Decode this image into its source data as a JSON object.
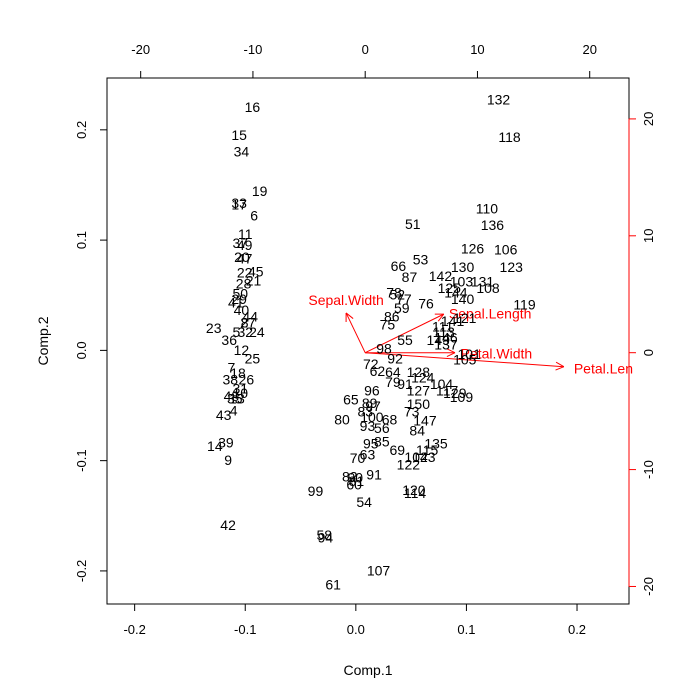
{
  "chart_data": {
    "type": "scatter",
    "xlabel": "Comp.1",
    "ylabel": "Comp.2",
    "xlim": [
      -0.225,
      0.247
    ],
    "ylim": [
      -0.23,
      0.247
    ],
    "var_xlim": [
      -23,
      23.5
    ],
    "var_ylim": [
      -21.5,
      23.5
    ],
    "x_ticks": [
      -0.2,
      -0.1,
      0.0,
      0.1,
      0.2
    ],
    "y_ticks": [
      -0.2,
      -0.1,
      0.0,
      0.1,
      0.2
    ],
    "var_x_ticks": [
      -20,
      -10,
      0,
      10,
      20
    ],
    "var_y_ticks": [
      -20,
      -10,
      0,
      10,
      20
    ],
    "x_tick_labels": [
      "-0.2",
      "-0.1",
      "0.0",
      "0.1",
      "0.2"
    ],
    "y_tick_labels": [
      "-0.2",
      "-0.1",
      "0.0",
      "0.1",
      "0.2"
    ],
    "var_x_tick_labels": [
      "-20",
      "-10",
      "0",
      "10",
      "20"
    ],
    "var_y_tick_labels": [
      "-20",
      "-10",
      "0",
      "10",
      "20"
    ],
    "points": [
      {
        "label": "16",
        "x": -0.0935,
        "y": 0.2205
      },
      {
        "label": "15",
        "x": -0.1055,
        "y": 0.1955
      },
      {
        "label": "34",
        "x": -0.1035,
        "y": 0.1805
      },
      {
        "label": "19",
        "x": -0.087,
        "y": 0.1445
      },
      {
        "label": "33",
        "x": -0.1055,
        "y": 0.1335
      },
      {
        "label": "17",
        "x": -0.1055,
        "y": 0.1325
      },
      {
        "label": "6",
        "x": -0.092,
        "y": 0.1225
      },
      {
        "label": "11",
        "x": -0.1,
        "y": 0.1055
      },
      {
        "label": "37",
        "x": -0.1045,
        "y": 0.0975
      },
      {
        "label": "49",
        "x": -0.1005,
        "y": 0.0955
      },
      {
        "label": "20",
        "x": -0.103,
        "y": 0.0845
      },
      {
        "label": "47",
        "x": -0.1005,
        "y": 0.0835
      },
      {
        "label": "22",
        "x": -0.1005,
        "y": 0.0705
      },
      {
        "label": "45",
        "x": -0.0905,
        "y": 0.0715
      },
      {
        "label": "21",
        "x": -0.0925,
        "y": 0.0635
      },
      {
        "label": "28",
        "x": -0.1015,
        "y": 0.0605
      },
      {
        "label": "50",
        "x": -0.1045,
        "y": 0.0515
      },
      {
        "label": "29",
        "x": -0.1055,
        "y": 0.0465
      },
      {
        "label": "41",
        "x": -0.1085,
        "y": 0.0435
      },
      {
        "label": "40",
        "x": -0.1035,
        "y": 0.0365
      },
      {
        "label": "44",
        "x": -0.0955,
        "y": 0.0305
      },
      {
        "label": "8",
        "x": -0.1005,
        "y": 0.0255
      },
      {
        "label": "27",
        "x": -0.0975,
        "y": 0.0255
      },
      {
        "label": "23",
        "x": -0.1285,
        "y": 0.0205
      },
      {
        "label": "5",
        "x": -0.108,
        "y": 0.0165
      },
      {
        "label": "32",
        "x": -0.1,
        "y": 0.0165
      },
      {
        "label": "24",
        "x": -0.0895,
        "y": 0.0165
      },
      {
        "label": "36",
        "x": -0.1145,
        "y": 0.0095
      },
      {
        "label": "12",
        "x": -0.1035,
        "y": 0.0005
      },
      {
        "label": "25",
        "x": -0.0935,
        "y": -0.0075
      },
      {
        "label": "7",
        "x": -0.1125,
        "y": -0.0155
      },
      {
        "label": "18",
        "x": -0.1065,
        "y": -0.0205
      },
      {
        "label": "38",
        "x": -0.1135,
        "y": -0.0265
      },
      {
        "label": "26",
        "x": -0.099,
        "y": -0.0265
      },
      {
        "label": "31",
        "x": -0.1045,
        "y": -0.0345
      },
      {
        "label": "10",
        "x": -0.1045,
        "y": -0.0385
      },
      {
        "label": "48",
        "x": -0.1125,
        "y": -0.0415
      },
      {
        "label": "35",
        "x": -0.1095,
        "y": -0.0435
      },
      {
        "label": "13",
        "x": -0.1075,
        "y": -0.0435
      },
      {
        "label": "4",
        "x": -0.1105,
        "y": -0.0545
      },
      {
        "label": "43",
        "x": -0.1195,
        "y": -0.0585
      },
      {
        "label": "39",
        "x": -0.1175,
        "y": -0.0835
      },
      {
        "label": "14",
        "x": -0.1275,
        "y": -0.0865
      },
      {
        "label": "9",
        "x": -0.1155,
        "y": -0.0995
      },
      {
        "label": "42",
        "x": -0.1155,
        "y": -0.1585
      },
      {
        "label": "132",
        "x": 0.129,
        "y": 0.2275
      },
      {
        "label": "118",
        "x": 0.139,
        "y": 0.1935
      },
      {
        "label": "110",
        "x": 0.1185,
        "y": 0.1285
      },
      {
        "label": "136",
        "x": 0.1235,
        "y": 0.1135
      },
      {
        "label": "51",
        "x": 0.0515,
        "y": 0.1145
      },
      {
        "label": "126",
        "x": 0.1055,
        "y": 0.0925
      },
      {
        "label": "106",
        "x": 0.1355,
        "y": 0.0915
      },
      {
        "label": "53",
        "x": 0.0585,
        "y": 0.0825
      },
      {
        "label": "66",
        "x": 0.0385,
        "y": 0.0765
      },
      {
        "label": "130",
        "x": 0.0965,
        "y": 0.0755
      },
      {
        "label": "123",
        "x": 0.1405,
        "y": 0.0755
      },
      {
        "label": "87",
        "x": 0.0485,
        "y": 0.0665
      },
      {
        "label": "142",
        "x": 0.0765,
        "y": 0.0675
      },
      {
        "label": "103",
        "x": 0.0955,
        "y": 0.0625
      },
      {
        "label": "131",
        "x": 0.1145,
        "y": 0.0625
      },
      {
        "label": "108",
        "x": 0.1195,
        "y": 0.0565
      },
      {
        "label": "125",
        "x": 0.0845,
        "y": 0.0565
      },
      {
        "label": "144",
        "x": 0.0905,
        "y": 0.0525
      },
      {
        "label": "78",
        "x": 0.0345,
        "y": 0.0525
      },
      {
        "label": "52",
        "x": 0.0375,
        "y": 0.0505
      },
      {
        "label": "140",
        "x": 0.0965,
        "y": 0.0465
      },
      {
        "label": "119",
        "x": 0.1525,
        "y": 0.0415
      },
      {
        "label": "77",
        "x": 0.0435,
        "y": 0.0465
      },
      {
        "label": "59",
        "x": 0.0415,
        "y": 0.0385
      },
      {
        "label": "76",
        "x": 0.0635,
        "y": 0.0425
      },
      {
        "label": "86",
        "x": 0.0325,
        "y": 0.0305
      },
      {
        "label": "75",
        "x": 0.0285,
        "y": 0.0235
      },
      {
        "label": "121",
        "x": 0.0985,
        "y": 0.0295
      },
      {
        "label": "111",
        "x": 0.0785,
        "y": 0.0215
      },
      {
        "label": "141",
        "x": 0.0875,
        "y": 0.0265
      },
      {
        "label": "146",
        "x": 0.0815,
        "y": 0.0115
      },
      {
        "label": "113",
        "x": 0.0795,
        "y": 0.0165
      },
      {
        "label": "98",
        "x": 0.0255,
        "y": 0.0015
      },
      {
        "label": "55",
        "x": 0.0445,
        "y": 0.0095
      },
      {
        "label": "149",
        "x": 0.0745,
        "y": 0.0095
      },
      {
        "label": "137",
        "x": 0.0815,
        "y": 0.0055
      },
      {
        "label": "101",
        "x": 0.1025,
        "y": -0.0035
      },
      {
        "label": "105",
        "x": 0.0985,
        "y": -0.0085
      },
      {
        "label": "92",
        "x": 0.0355,
        "y": -0.0075
      },
      {
        "label": "72",
        "x": 0.0135,
        "y": -0.0125
      },
      {
        "label": "62",
        "x": 0.0195,
        "y": -0.0185
      },
      {
        "label": "64",
        "x": 0.0335,
        "y": -0.0195
      },
      {
        "label": "128",
        "x": 0.0565,
        "y": -0.0195
      },
      {
        "label": "124",
        "x": 0.0605,
        "y": -0.0245
      },
      {
        "label": "79",
        "x": 0.0335,
        "y": -0.0285
      },
      {
        "label": "91",
        "x": 0.0445,
        "y": -0.0305
      },
      {
        "label": "104",
        "x": 0.0775,
        "y": -0.0305
      },
      {
        "label": "127",
        "x": 0.0565,
        "y": -0.0365
      },
      {
        "label": "117",
        "x": 0.0825,
        "y": -0.0365
      },
      {
        "label": "129",
        "x": 0.0895,
        "y": -0.0385
      },
      {
        "label": "96",
        "x": 0.0145,
        "y": -0.0365
      },
      {
        "label": "109",
        "x": 0.0955,
        "y": -0.0425
      },
      {
        "label": "65",
        "x": -0.0045,
        "y": -0.0445
      },
      {
        "label": "89",
        "x": 0.0125,
        "y": -0.0475
      },
      {
        "label": "97",
        "x": 0.0155,
        "y": -0.0505
      },
      {
        "label": "150",
        "x": 0.0565,
        "y": -0.0485
      },
      {
        "label": "83",
        "x": 0.0085,
        "y": -0.0555
      },
      {
        "label": "100",
        "x": 0.0145,
        "y": -0.0605
      },
      {
        "label": "68",
        "x": 0.0305,
        "y": -0.0625
      },
      {
        "label": "73",
        "x": 0.0505,
        "y": -0.0555
      },
      {
        "label": "147",
        "x": 0.0625,
        "y": -0.0635
      },
      {
        "label": "80",
        "x": -0.0125,
        "y": -0.0625
      },
      {
        "label": "93",
        "x": 0.0105,
        "y": -0.0685
      },
      {
        "label": "56",
        "x": 0.0235,
        "y": -0.0705
      },
      {
        "label": "84",
        "x": 0.0555,
        "y": -0.0725
      },
      {
        "label": "95",
        "x": 0.0135,
        "y": -0.0845
      },
      {
        "label": "85",
        "x": 0.0235,
        "y": -0.0825
      },
      {
        "label": "135",
        "x": 0.0725,
        "y": -0.0845
      },
      {
        "label": "69",
        "x": 0.0375,
        "y": -0.0905
      },
      {
        "label": "115",
        "x": 0.0645,
        "y": -0.0905
      },
      {
        "label": "63",
        "x": 0.0105,
        "y": -0.0945
      },
      {
        "label": "70",
        "x": 0.0015,
        "y": -0.0975
      },
      {
        "label": "102",
        "x": 0.0545,
        "y": -0.0965
      },
      {
        "label": "143",
        "x": 0.0615,
        "y": -0.0965
      },
      {
        "label": "122",
        "x": 0.0475,
        "y": -0.1035
      },
      {
        "label": "82",
        "x": -0.0055,
        "y": -0.1145
      },
      {
        "label": "90",
        "x": -0.0005,
        "y": -0.1155
      },
      {
        "label": "91",
        "x": 0.0165,
        "y": -0.1125
      },
      {
        "label": "81",
        "x": 0.0005,
        "y": -0.1185
      },
      {
        "label": "60",
        "x": -0.0015,
        "y": -0.1215
      },
      {
        "label": "99",
        "x": -0.0365,
        "y": -0.1275
      },
      {
        "label": "120",
        "x": 0.0525,
        "y": -0.1265
      },
      {
        "label": "114",
        "x": 0.0535,
        "y": -0.1295
      },
      {
        "label": "54",
        "x": 0.0075,
        "y": -0.1375
      },
      {
        "label": "58",
        "x": -0.0285,
        "y": -0.1675
      },
      {
        "label": "94",
        "x": -0.0275,
        "y": -0.1695
      },
      {
        "label": "107",
        "x": 0.0205,
        "y": -0.1995
      },
      {
        "label": "61",
        "x": -0.0205,
        "y": -0.2125
      }
    ],
    "variables": [
      {
        "name": "Sepal.Length",
        "x": 7.0,
        "y": 3.3
      },
      {
        "name": "Sepal.Width",
        "x": -1.7,
        "y": 3.4
      },
      {
        "name": "Petal.Length",
        "x": 17.7,
        "y": -1.2
      },
      {
        "name": "Petal.Width",
        "x": 8.0,
        "y": 0.0
      }
    ],
    "variable_label_text": [
      "Sepal.Length",
      "Sepal.Width",
      "Petal.Len",
      "Petal.Width"
    ],
    "colors": {
      "points": "#000000",
      "variables": "#ff0000",
      "axes": "#000000"
    }
  }
}
